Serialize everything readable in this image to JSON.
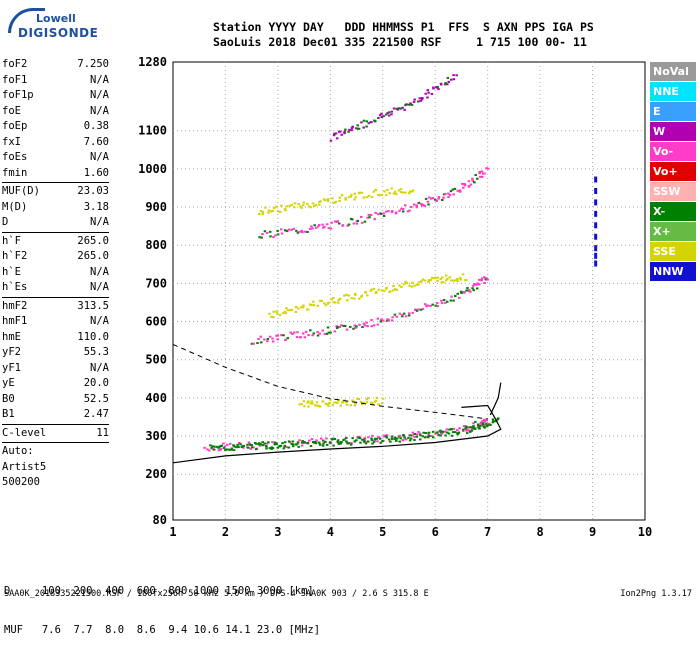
{
  "logo": {
    "line1": "Lowell",
    "line2": "DIGISONDE"
  },
  "header": {
    "row1": "Station YYYY DAY   DDD HHMMSS P1  FFS  S AXN PPS IGA PS",
    "row2": "SaoLuis 2018 Dec01 335 221500 RSF     1 715 100 00- 11"
  },
  "params": [
    {
      "name": "foF2",
      "value": "7.250"
    },
    {
      "name": "foF1",
      "value": "N/A"
    },
    {
      "name": "foF1p",
      "value": "N/A"
    },
    {
      "name": "foE",
      "value": "N/A"
    },
    {
      "name": "foEp",
      "value": "0.38"
    },
    {
      "name": "fxI",
      "value": "7.60"
    },
    {
      "name": "foEs",
      "value": "N/A"
    },
    {
      "name": "fmin",
      "value": "1.60"
    },
    {
      "sep": true
    },
    {
      "name": "MUF(D)",
      "value": "23.03"
    },
    {
      "name": "M(D)",
      "value": "3.18"
    },
    {
      "name": "D",
      "value": "N/A"
    },
    {
      "sep": true
    },
    {
      "name": "h`F",
      "value": "265.0"
    },
    {
      "name": "h`F2",
      "value": "265.0"
    },
    {
      "name": "h`E",
      "value": "N/A"
    },
    {
      "name": "h`Es",
      "value": "N/A"
    },
    {
      "sep": true
    },
    {
      "name": "hmF2",
      "value": "313.5"
    },
    {
      "name": "hmF1",
      "value": "N/A"
    },
    {
      "name": "hmE",
      "value": "110.0"
    },
    {
      "name": "yF2",
      "value": "55.3"
    },
    {
      "name": "yF1",
      "value": "N/A"
    },
    {
      "name": "yE",
      "value": "20.0"
    },
    {
      "name": "B0",
      "value": "52.5"
    },
    {
      "name": "B1",
      "value": "2.47"
    },
    {
      "sep": true
    },
    {
      "name": "C-level",
      "value": "11"
    },
    {
      "sep": true
    },
    {
      "name": "Auto:",
      "value": ""
    },
    {
      "name": "Artist5",
      "value": ""
    },
    {
      "name": "500200",
      "value": ""
    }
  ],
  "freq_table": {
    "row1": "D     100  200  400  600  800 1000 1500 3000 [km]",
    "row2": "MUF   7.6  7.7  8.0  8.6  9.4 10.6 14.1 23.0 [MHz]"
  },
  "footer": "SAA0K_2018335221500.RSF / 180fx256h 50 kHz 5.0 km / DPS-4 SAA0K 903 / 2.6 S 315.8 E",
  "version": "Ion2Png 1.3.17",
  "legend": [
    {
      "label": "NoVal",
      "color": "#9a9a9a"
    },
    {
      "label": "NNE",
      "color": "#00e4ff"
    },
    {
      "label": "E",
      "color": "#3aa0ff"
    },
    {
      "label": "W",
      "color": "#b000b0"
    },
    {
      "label": "Vo-",
      "color": "#ff3cc8"
    },
    {
      "label": "Vo+",
      "color": "#e00000"
    },
    {
      "label": "SSW",
      "color": "#ffb0b0"
    },
    {
      "label": "X-",
      "color": "#008000"
    },
    {
      "label": "X+",
      "color": "#66bb44"
    },
    {
      "label": "SSE",
      "color": "#d4d400"
    },
    {
      "label": "NNW",
      "color": "#1010d0"
    }
  ],
  "chart_data": {
    "type": "scatter",
    "xlim": [
      1,
      10
    ],
    "ylim": [
      80,
      1280
    ],
    "x_ticks": [
      1,
      2,
      3,
      4,
      5,
      6,
      7,
      8,
      9,
      10
    ],
    "y_ticks": [
      80,
      200,
      300,
      400,
      500,
      600,
      700,
      800,
      900,
      1000,
      1100,
      1280
    ],
    "grid": true,
    "traces": [
      {
        "name": "F2 O",
        "color": "#ff3cc8",
        "x": [
          1.6,
          2.5,
          3.5,
          4.5,
          5.5,
          6.5,
          7.0
        ],
        "y": [
          272,
          278,
          285,
          292,
          302,
          320,
          340
        ]
      },
      {
        "name": "F2 X",
        "color": "#008000",
        "x": [
          1.7,
          2.6,
          3.6,
          4.6,
          5.6,
          6.6,
          7.2
        ],
        "y": [
          270,
          276,
          283,
          290,
          300,
          318,
          345
        ]
      },
      {
        "name": "2F O",
        "color": "#ff3cc8",
        "x": [
          2.5,
          3.5,
          4.5,
          5.5,
          6.5,
          7.0
        ],
        "y": [
          552,
          570,
          590,
          625,
          675,
          720
        ]
      },
      {
        "name": "2F SSE",
        "color": "#d4d400",
        "x": [
          2.8,
          3.8,
          4.8,
          5.8,
          6.6
        ],
        "y": [
          620,
          650,
          680,
          710,
          720
        ]
      },
      {
        "name": "3F O",
        "color": "#ff3cc8",
        "x": [
          2.6,
          3.6,
          4.6,
          5.6,
          6.4,
          7.0
        ],
        "y": [
          828,
          845,
          870,
          905,
          945,
          1000
        ]
      },
      {
        "name": "3F SSE",
        "color": "#d4d400",
        "x": [
          2.6,
          3.6,
          4.6,
          5.6
        ],
        "y": [
          890,
          910,
          935,
          950
        ]
      },
      {
        "name": "4F W",
        "color": "#b000b0",
        "x": [
          4.0,
          4.8,
          5.6,
          6.4
        ],
        "y": [
          1085,
          1130,
          1180,
          1250
        ]
      },
      {
        "name": "oblique SSE",
        "color": "#d4d400",
        "x": [
          3.4,
          4.2,
          5.0
        ],
        "y": [
          385,
          390,
          395
        ]
      }
    ],
    "nnw_points": {
      "color": "#1010d0",
      "x": 9.05,
      "y": [
        760,
        780,
        800,
        830,
        860,
        890,
        920,
        950,
        980
      ]
    },
    "model_curves": {
      "x_curve": [
        [
          1.0,
          230
        ],
        [
          2.0,
          248
        ],
        [
          3.0,
          258
        ],
        [
          4.0,
          266
        ],
        [
          5.0,
          273
        ],
        [
          6.0,
          283
        ],
        [
          7.0,
          300
        ],
        [
          7.25,
          318
        ],
        [
          7.15,
          345
        ],
        [
          7.0,
          380
        ],
        [
          6.5,
          375
        ]
      ],
      "dashed": [
        [
          1.0,
          540
        ],
        [
          2.0,
          480
        ],
        [
          3.0,
          430
        ],
        [
          4.0,
          398
        ],
        [
          5.0,
          378
        ],
        [
          6.0,
          362
        ],
        [
          7.0,
          345
        ]
      ],
      "solid_upper": [
        [
          7.25,
          440
        ],
        [
          7.2,
          400
        ],
        [
          7.05,
          355
        ]
      ]
    }
  }
}
